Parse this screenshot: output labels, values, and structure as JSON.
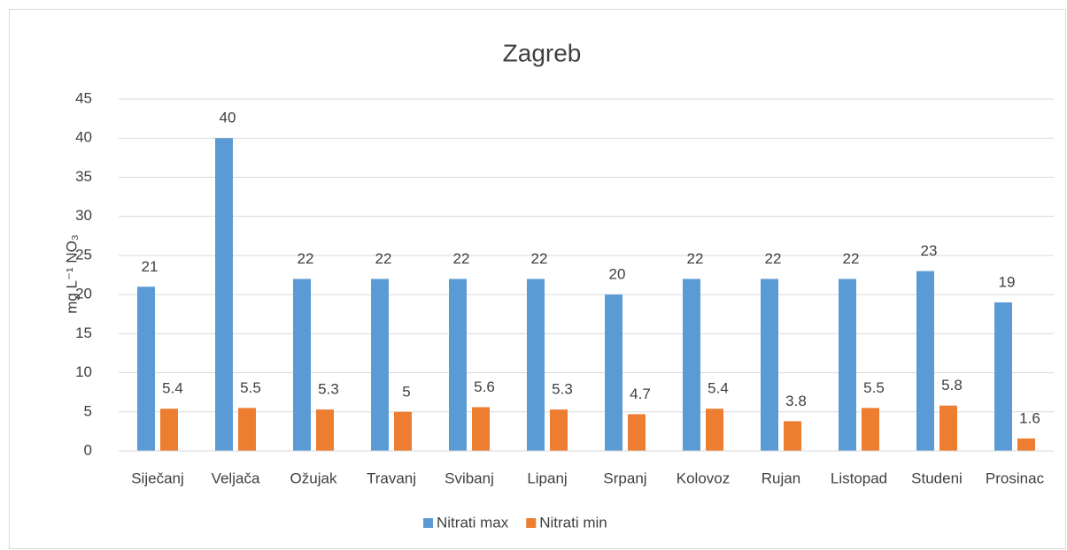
{
  "chart_data": {
    "type": "bar",
    "title": "Zagreb",
    "y_label": "mg L⁻¹ NO₃",
    "categories": [
      "Siječanj",
      "Veljača",
      "Ožujak",
      "Travanj",
      "Svibanj",
      "Lipanj",
      "Srpanj",
      "Kolovoz",
      "Rujan",
      "Listopad",
      "Studeni",
      "Prosinac"
    ],
    "series": [
      {
        "name": "Nitrati max",
        "color": "#5b9bd5",
        "values": [
          21,
          40,
          22,
          22,
          22,
          22,
          20,
          22,
          22,
          22,
          23,
          19
        ]
      },
      {
        "name": "Nitrati min",
        "color": "#ed7d31",
        "values": [
          5.4,
          5.5,
          5.3,
          5,
          5.6,
          5.3,
          4.7,
          5.4,
          3.8,
          5.5,
          5.8,
          1.6
        ]
      }
    ],
    "ylim": [
      0,
      45
    ],
    "yticks": [
      0,
      5,
      10,
      15,
      20,
      25,
      30,
      35,
      40,
      45
    ],
    "grid": true,
    "legend": "bottom"
  }
}
